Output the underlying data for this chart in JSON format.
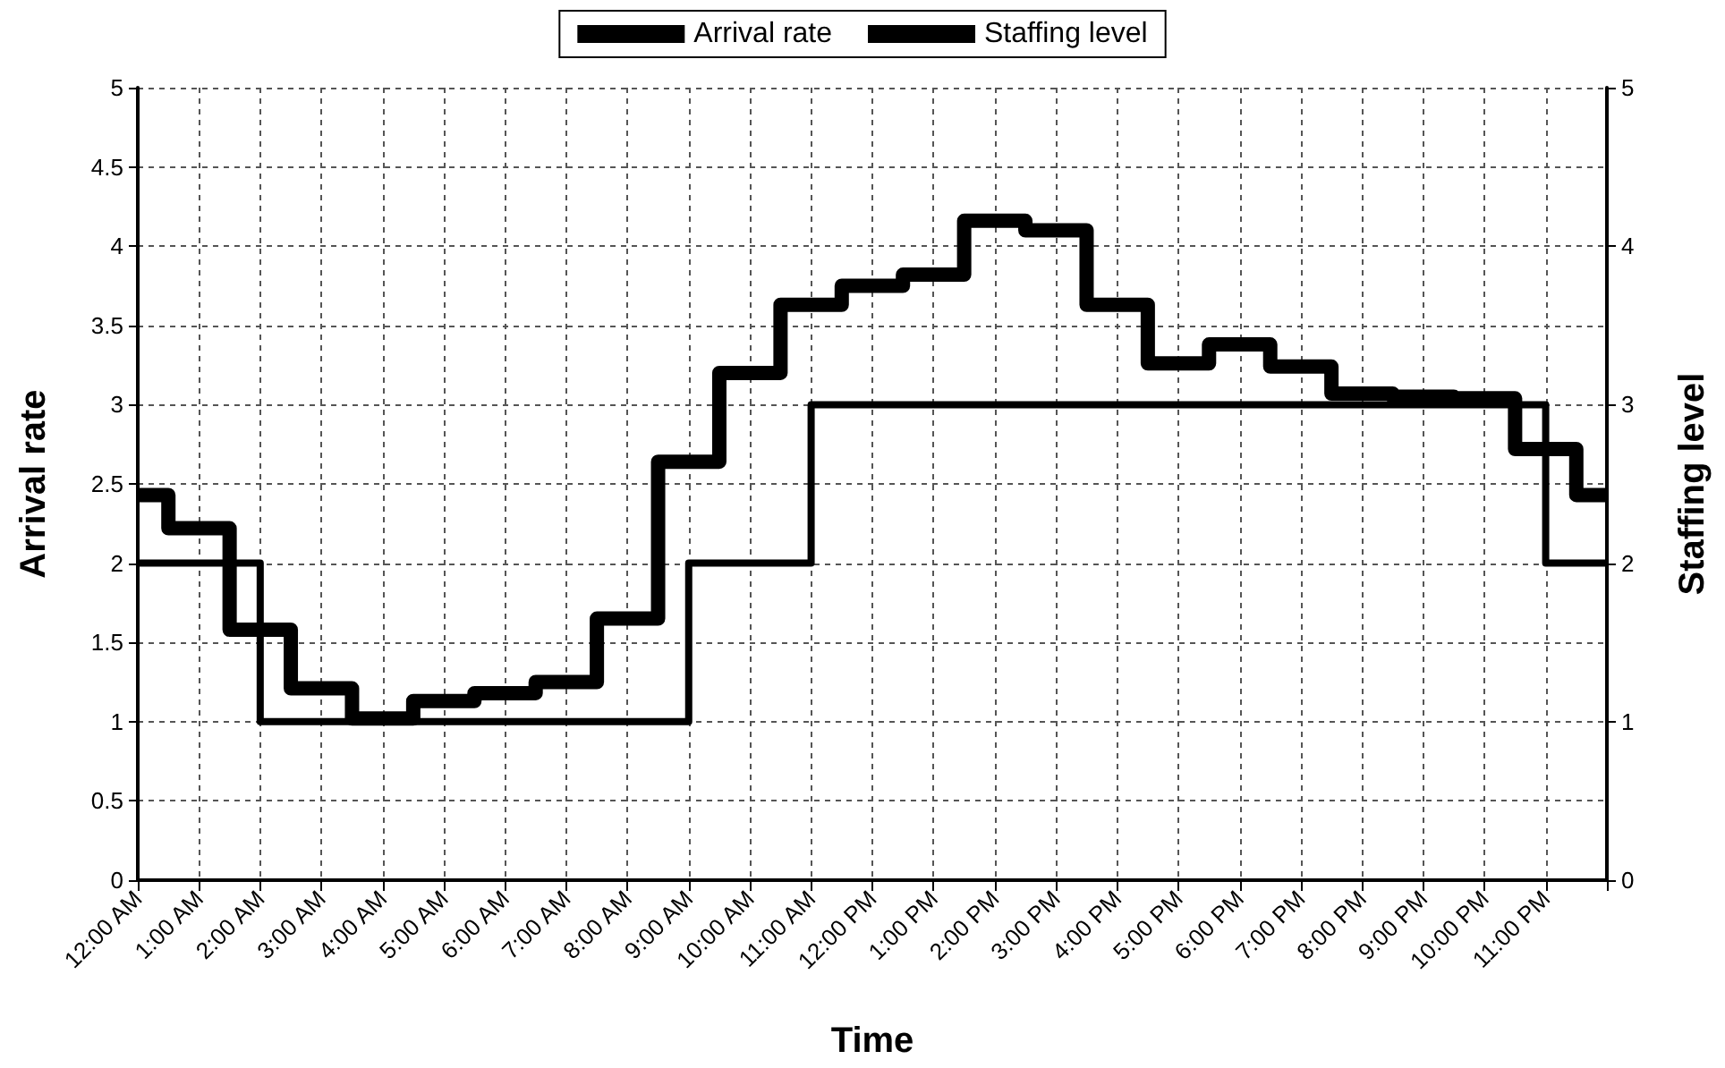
{
  "chart_data": {
    "type": "line",
    "xlabel": "Time",
    "ylabel": "Arrival rate",
    "y2label": "Staffing level",
    "xlim": [
      0,
      24
    ],
    "xticks": [
      {
        "value": 0,
        "label": "12:00 AM"
      },
      {
        "value": 1,
        "label": "1:00 AM"
      },
      {
        "value": 2,
        "label": "2:00 AM"
      },
      {
        "value": 3,
        "label": "3:00 AM"
      },
      {
        "value": 4,
        "label": "4:00 AM"
      },
      {
        "value": 5,
        "label": "5:00 AM"
      },
      {
        "value": 6,
        "label": "6:00 AM"
      },
      {
        "value": 7,
        "label": "7:00 AM"
      },
      {
        "value": 8,
        "label": "8:00 AM"
      },
      {
        "value": 9,
        "label": "9:00 AM"
      },
      {
        "value": 10,
        "label": "10:00 AM"
      },
      {
        "value": 11,
        "label": "11:00 AM"
      },
      {
        "value": 12,
        "label": "12:00 PM"
      },
      {
        "value": 13,
        "label": "1:00 PM"
      },
      {
        "value": 14,
        "label": "2:00 PM"
      },
      {
        "value": 15,
        "label": "3:00 PM"
      },
      {
        "value": 16,
        "label": "4:00 PM"
      },
      {
        "value": 17,
        "label": "5:00 PM"
      },
      {
        "value": 18,
        "label": "6:00 PM"
      },
      {
        "value": 19,
        "label": "7:00 PM"
      },
      {
        "value": 20,
        "label": "8:00 PM"
      },
      {
        "value": 21,
        "label": "9:00 PM"
      },
      {
        "value": 22,
        "label": "10:00 PM"
      },
      {
        "value": 23,
        "label": "11:00 PM"
      },
      {
        "value": 24,
        "label": null
      }
    ],
    "ylim": [
      0,
      5
    ],
    "yticks": [
      0,
      0.5,
      1,
      1.5,
      2,
      2.5,
      3,
      3.5,
      4,
      4.5,
      5
    ],
    "y2lim": [
      0,
      5
    ],
    "y2ticks": [
      0,
      1,
      2,
      3,
      4,
      5
    ],
    "grid": true,
    "legend": "top",
    "series": [
      {
        "name": "Arrival rate",
        "type": "step",
        "color": "#000000",
        "x": [
          0,
          1,
          2,
          3,
          4,
          5,
          6,
          7,
          8,
          9,
          10,
          11,
          12,
          13,
          14,
          15,
          16,
          17,
          18,
          19,
          20,
          21,
          22,
          23,
          24
        ],
        "values": [
          2.43,
          2.22,
          1.58,
          1.21,
          1.02,
          1.13,
          1.18,
          1.25,
          1.65,
          2.64,
          3.2,
          3.63,
          3.75,
          3.82,
          4.16,
          4.1,
          3.63,
          3.26,
          3.38,
          3.24,
          3.07,
          3.05,
          3.04,
          2.72,
          2.43
        ]
      },
      {
        "name": "Staffing level",
        "axis": "y2",
        "color": "#000000",
        "x": [
          0,
          2,
          2,
          9,
          9,
          11,
          11,
          23,
          23,
          24
        ],
        "values": [
          2,
          2,
          1,
          1,
          2,
          2,
          3,
          3,
          2,
          2
        ]
      }
    ]
  }
}
